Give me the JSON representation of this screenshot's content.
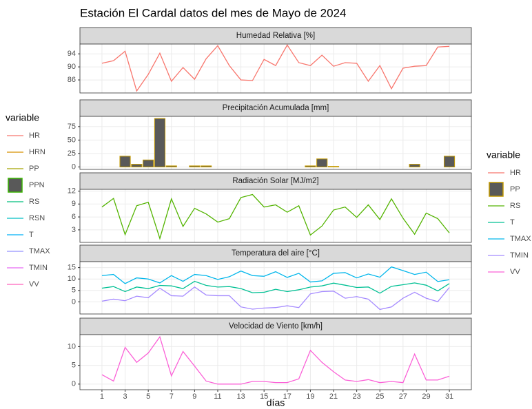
{
  "title": "Estación El Cardal datos del mes de Mayo de 2024",
  "x_label": "días",
  "legend_title": "variable",
  "legend_left": [
    {
      "name": "HR",
      "color": "#F8766D",
      "key": "line"
    },
    {
      "name": "HRN",
      "color": "#D89000",
      "key": "line"
    },
    {
      "name": "PP",
      "color": "#A3A500",
      "key": "line"
    },
    {
      "name": "PPN",
      "color": "#39B600",
      "fill": "#595959",
      "key": "box"
    },
    {
      "name": "RS",
      "color": "#00BF7D",
      "key": "line"
    },
    {
      "name": "RSN",
      "color": "#00BFC4",
      "key": "line"
    },
    {
      "name": "T",
      "color": "#00B0F6",
      "key": "line"
    },
    {
      "name": "TMAX",
      "color": "#9590FF",
      "key": "line"
    },
    {
      "name": "TMIN",
      "color": "#E76BF3",
      "key": "line"
    },
    {
      "name": "VV",
      "color": "#FF62BC",
      "key": "line"
    }
  ],
  "chart_data": [
    {
      "type": "line",
      "title": "Humedad Relativa [%]",
      "x": [
        1,
        2,
        3,
        4,
        5,
        6,
        7,
        8,
        9,
        10,
        11,
        12,
        13,
        14,
        15,
        16,
        17,
        18,
        19,
        20,
        21,
        22,
        23,
        24,
        25,
        26,
        27,
        28,
        29,
        30,
        31
      ],
      "xlim": [
        -0.9,
        32.9
      ],
      "ylim": [
        82,
        97
      ],
      "yticks": [
        86,
        90,
        94
      ],
      "series": [
        {
          "name": "HR",
          "color": "#F8766D",
          "values": [
            91.1,
            91.9,
            94.8,
            82.6,
            87.7,
            94.2,
            85.6,
            89.8,
            86.2,
            92.5,
            96.5,
            90.4,
            86.0,
            85.8,
            92.3,
            90.4,
            96.7,
            91.3,
            90.4,
            93.6,
            90.2,
            91.3,
            91.1,
            85.6,
            90.4,
            83.3,
            89.6,
            90.2,
            90.4,
            96.1,
            96.3
          ]
        }
      ]
    },
    {
      "type": "bar",
      "title": "Precipitación Acumulada [mm]",
      "x": [
        1,
        2,
        3,
        4,
        5,
        6,
        7,
        8,
        9,
        10,
        11,
        12,
        13,
        14,
        15,
        16,
        17,
        18,
        19,
        20,
        21,
        22,
        23,
        24,
        25,
        26,
        27,
        28,
        29,
        30,
        31
      ],
      "xlim": [
        -0.9,
        32.9
      ],
      "ylim": [
        -4.5,
        94
      ],
      "yticks": [
        0,
        25,
        50,
        75
      ],
      "series": [
        {
          "name": "PP",
          "color": "#C49A00",
          "fill": "#595959",
          "values": [
            0,
            0,
            20,
            5,
            13,
            90,
            2,
            0,
            2,
            2,
            0,
            0,
            0,
            0,
            0,
            0,
            0,
            0,
            2,
            15,
            1,
            0,
            0,
            0,
            0,
            0,
            0,
            5,
            0,
            0,
            20
          ]
        }
      ]
    },
    {
      "type": "line",
      "title": "Radiación Solar [MJ/m2]",
      "x": [
        1,
        2,
        3,
        4,
        5,
        6,
        7,
        8,
        9,
        10,
        11,
        12,
        13,
        14,
        15,
        16,
        17,
        18,
        19,
        20,
        21,
        22,
        23,
        24,
        25,
        26,
        27,
        28,
        29,
        30,
        31
      ],
      "xlim": [
        -0.9,
        32.9
      ],
      "ylim": [
        0.1,
        12.4
      ],
      "yticks": [
        3,
        6,
        9,
        12
      ],
      "series": [
        {
          "name": "RS",
          "color": "#53B400",
          "values": [
            8.3,
            10.3,
            1.9,
            8.6,
            9.4,
            1.0,
            10.2,
            3.8,
            8.0,
            6.7,
            4.8,
            5.6,
            10.5,
            11.2,
            8.3,
            8.8,
            7.1,
            8.6,
            1.8,
            3.9,
            7.6,
            8.3,
            5.9,
            8.8,
            5.4,
            10.2,
            5.7,
            2.0,
            6.9,
            5.6,
            2.3
          ]
        }
      ]
    },
    {
      "type": "line",
      "title": "Temperatura del aire [°C]",
      "x": [
        1,
        2,
        3,
        4,
        5,
        6,
        7,
        8,
        9,
        10,
        11,
        12,
        13,
        14,
        15,
        16,
        17,
        18,
        19,
        20,
        21,
        22,
        23,
        24,
        25,
        26,
        27,
        28,
        29,
        30,
        31
      ],
      "xlim": [
        -0.9,
        32.9
      ],
      "ylim": [
        -5.3,
        17.6
      ],
      "yticks": [
        0,
        5,
        10,
        15
      ],
      "series": [
        {
          "name": "T",
          "color": "#00C094",
          "values": [
            6,
            6.7,
            4.5,
            6.5,
            5.8,
            7.2,
            7,
            5.8,
            9,
            7.2,
            6.5,
            6.7,
            5.8,
            4,
            4.2,
            5.5,
            4.5,
            5.3,
            6.5,
            7,
            8.2,
            7.3,
            6.3,
            6.5,
            3.8,
            6.8,
            7.5,
            8.3,
            7.3,
            4.8,
            8
          ]
        },
        {
          "name": "TMAX",
          "color": "#00B6EB",
          "values": [
            11.5,
            12,
            8,
            10.5,
            10,
            8.3,
            11.5,
            9,
            12,
            11.5,
            9.8,
            11,
            13.5,
            11.5,
            11.2,
            13.2,
            10.7,
            12.5,
            8.7,
            9.2,
            12.5,
            12.8,
            10.5,
            12.2,
            10.8,
            15.3,
            13.7,
            12,
            13,
            8.9,
            9.7
          ]
        },
        {
          "name": "TMIN",
          "color": "#A58AFF",
          "values": [
            0.3,
            1.2,
            0.5,
            2.5,
            1.8,
            6,
            2.7,
            2.5,
            6.5,
            3,
            2.7,
            2.7,
            -2.2,
            -3.2,
            -2.7,
            -2.5,
            -1.7,
            -2.5,
            3.5,
            4.5,
            4.7,
            1.6,
            2.3,
            1.2,
            -3.3,
            -2.2,
            1.6,
            4.2,
            1.6,
            0.1,
            6.3
          ]
        }
      ]
    },
    {
      "type": "line",
      "title": "Velocidad de Viento [km/h]",
      "x": [
        1,
        2,
        3,
        4,
        5,
        6,
        7,
        8,
        9,
        10,
        11,
        12,
        13,
        14,
        15,
        16,
        17,
        18,
        19,
        20,
        21,
        22,
        23,
        24,
        25,
        26,
        27,
        28,
        29,
        30,
        31
      ],
      "xlim": [
        -0.9,
        32.9
      ],
      "ylim": [
        -1.5,
        13.2
      ],
      "yticks": [
        0,
        5,
        10
      ],
      "xticks": [
        1,
        3,
        5,
        7,
        9,
        11,
        13,
        15,
        17,
        19,
        21,
        23,
        25,
        27,
        29,
        31
      ],
      "series": [
        {
          "name": "VV",
          "color": "#FB61D7",
          "values": [
            2.5,
            0.8,
            9.8,
            5.8,
            8.3,
            12.6,
            2.2,
            8.7,
            4.8,
            0.8,
            0,
            0,
            0,
            0.7,
            0.7,
            0.4,
            0.4,
            1.4,
            9,
            5.8,
            3.3,
            1.1,
            0.7,
            1.2,
            0.4,
            0.7,
            0.4,
            8,
            1.1,
            1.1,
            2.1
          ]
        }
      ]
    }
  ]
}
